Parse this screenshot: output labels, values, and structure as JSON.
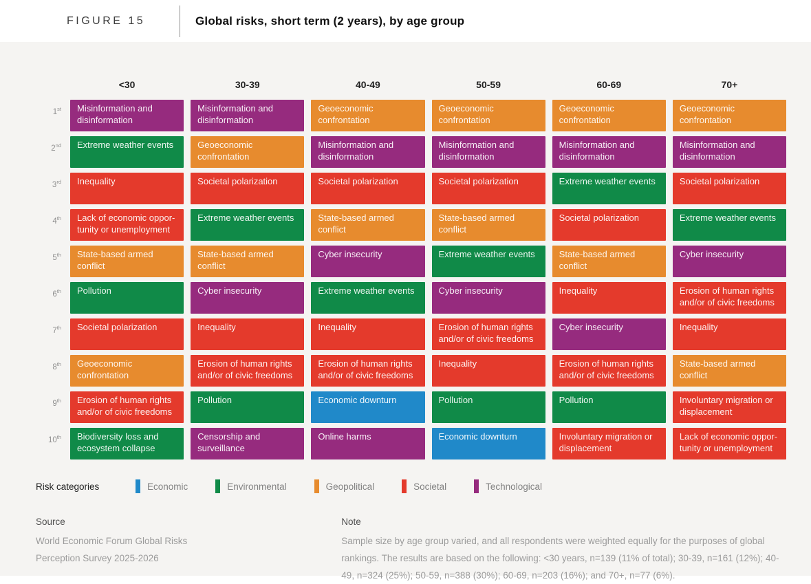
{
  "header": {
    "figure_label": "FIGURE 15",
    "title": "Global risks, short term (2 years), by age group"
  },
  "chart_data": {
    "type": "table",
    "title": "Global risks, short term (2 years), by age group",
    "columns": [
      "<30",
      "30-39",
      "40-49",
      "50-59",
      "60-69",
      "70+"
    ],
    "category_colors": {
      "economic": "#2089c9",
      "environmental": "#108a48",
      "geopolitical": "#e78b2e",
      "societal": "#e43a2c",
      "technological": "#962b7e"
    },
    "rows": [
      {
        "rank": "1",
        "suffix": "st",
        "cells": [
          {
            "risk": "Misinformation and disinformation",
            "category": "technological"
          },
          {
            "risk": "Misinformation and disinformation",
            "category": "technological"
          },
          {
            "risk": "Geoeconomic confrontation",
            "category": "geopolitical"
          },
          {
            "risk": "Geoeconomic confrontation",
            "category": "geopolitical"
          },
          {
            "risk": "Geoeconomic confrontation",
            "category": "geopolitical"
          },
          {
            "risk": "Geoeconomic confrontation",
            "category": "geopolitical"
          }
        ]
      },
      {
        "rank": "2",
        "suffix": "nd",
        "cells": [
          {
            "risk": "Extreme weather events",
            "category": "environmental"
          },
          {
            "risk": "Geoeconomic confrontation",
            "category": "geopolitical"
          },
          {
            "risk": "Misinformation and disinformation",
            "category": "technological"
          },
          {
            "risk": "Misinformation and disinformation",
            "category": "technological"
          },
          {
            "risk": "Misinformation and disinformation",
            "category": "technological"
          },
          {
            "risk": "Misinformation and disinformation",
            "category": "technological"
          }
        ]
      },
      {
        "rank": "3",
        "suffix": "rd",
        "cells": [
          {
            "risk": "Inequality",
            "category": "societal"
          },
          {
            "risk": "Societal polarization",
            "category": "societal"
          },
          {
            "risk": "Societal polarization",
            "category": "societal"
          },
          {
            "risk": "Societal polarization",
            "category": "societal"
          },
          {
            "risk": "Extreme weather events",
            "category": "environmental"
          },
          {
            "risk": "Societal polarization",
            "category": "societal"
          }
        ]
      },
      {
        "rank": "4",
        "suffix": "th",
        "cells": [
          {
            "risk": "Lack of economic oppor-tunity or unemployment",
            "category": "societal"
          },
          {
            "risk": "Extreme weather events",
            "category": "environmental"
          },
          {
            "risk": "State-based armed conflict",
            "category": "geopolitical"
          },
          {
            "risk": "State-based armed conflict",
            "category": "geopolitical"
          },
          {
            "risk": "Societal polarization",
            "category": "societal"
          },
          {
            "risk": "Extreme weather events",
            "category": "environmental"
          }
        ]
      },
      {
        "rank": "5",
        "suffix": "th",
        "cells": [
          {
            "risk": "State-based armed conflict",
            "category": "geopolitical"
          },
          {
            "risk": "State-based armed conflict",
            "category": "geopolitical"
          },
          {
            "risk": "Cyber insecurity",
            "category": "technological"
          },
          {
            "risk": "Extreme weather events",
            "category": "environmental"
          },
          {
            "risk": "State-based armed conflict",
            "category": "geopolitical"
          },
          {
            "risk": "Cyber insecurity",
            "category": "technological"
          }
        ]
      },
      {
        "rank": "6",
        "suffix": "th",
        "cells": [
          {
            "risk": "Pollution",
            "category": "environmental"
          },
          {
            "risk": "Cyber insecurity",
            "category": "technological"
          },
          {
            "risk": "Extreme weather events",
            "category": "environmental"
          },
          {
            "risk": "Cyber insecurity",
            "category": "technological"
          },
          {
            "risk": "Inequality",
            "category": "societal"
          },
          {
            "risk": "Erosion of human rights and/or of civic freedoms",
            "category": "societal"
          }
        ]
      },
      {
        "rank": "7",
        "suffix": "th",
        "cells": [
          {
            "risk": "Societal polarization",
            "category": "societal"
          },
          {
            "risk": "Inequality",
            "category": "societal"
          },
          {
            "risk": "Inequality",
            "category": "societal"
          },
          {
            "risk": "Erosion of human rights and/or of civic freedoms",
            "category": "societal"
          },
          {
            "risk": "Cyber insecurity",
            "category": "technological"
          },
          {
            "risk": "Inequality",
            "category": "societal"
          }
        ]
      },
      {
        "rank": "8",
        "suffix": "th",
        "cells": [
          {
            "risk": "Geoeconomic confrontation",
            "category": "geopolitical"
          },
          {
            "risk": "Erosion of human rights and/or of civic freedoms",
            "category": "societal"
          },
          {
            "risk": "Erosion of human rights and/or of civic freedoms",
            "category": "societal"
          },
          {
            "risk": "Inequality",
            "category": "societal"
          },
          {
            "risk": "Erosion of human rights and/or of civic freedoms",
            "category": "societal"
          },
          {
            "risk": "State-based armed conflict",
            "category": "geopolitical"
          }
        ]
      },
      {
        "rank": "9",
        "suffix": "th",
        "cells": [
          {
            "risk": "Erosion of human rights and/or of civic freedoms",
            "category": "societal"
          },
          {
            "risk": "Pollution",
            "category": "environmental"
          },
          {
            "risk": "Economic downturn",
            "category": "economic"
          },
          {
            "risk": "Pollution",
            "category": "environmental"
          },
          {
            "risk": "Pollution",
            "category": "environmental"
          },
          {
            "risk": "Involuntary migration or displacement",
            "category": "societal"
          }
        ]
      },
      {
        "rank": "10",
        "suffix": "th",
        "cells": [
          {
            "risk": "Biodiversity loss and ecosystem collapse",
            "category": "environmental"
          },
          {
            "risk": "Censorship and surveillance",
            "category": "technological"
          },
          {
            "risk": "Online harms",
            "category": "technological"
          },
          {
            "risk": "Economic downturn",
            "category": "economic"
          },
          {
            "risk": "Involuntary migration or displacement",
            "category": "societal"
          },
          {
            "risk": "Lack of economic oppor-tunity or unemployment",
            "category": "societal"
          }
        ]
      }
    ]
  },
  "legend": {
    "title": "Risk categories",
    "items": [
      {
        "label": "Economic",
        "category": "economic"
      },
      {
        "label": "Environmental",
        "category": "environmental"
      },
      {
        "label": "Geopolitical",
        "category": "geopolitical"
      },
      {
        "label": "Societal",
        "category": "societal"
      },
      {
        "label": "Technological",
        "category": "technological"
      }
    ]
  },
  "footer": {
    "source_title": "Source",
    "source_lines": [
      "World Economic Forum Global Risks",
      "Perception Survey 2025-2026"
    ],
    "note_title": "Note",
    "note_text": "Sample size by age group varied, and all respondents were weighted equally for the purposes of global rankings. The results are based on the following: <30 years, n=139 (11% of total); 30-39, n=161 (12%); 40-49, n=324 (25%); 50-59, n=388 (30%); 60-69, n=203 (16%); and 70+, n=77 (6%)."
  }
}
